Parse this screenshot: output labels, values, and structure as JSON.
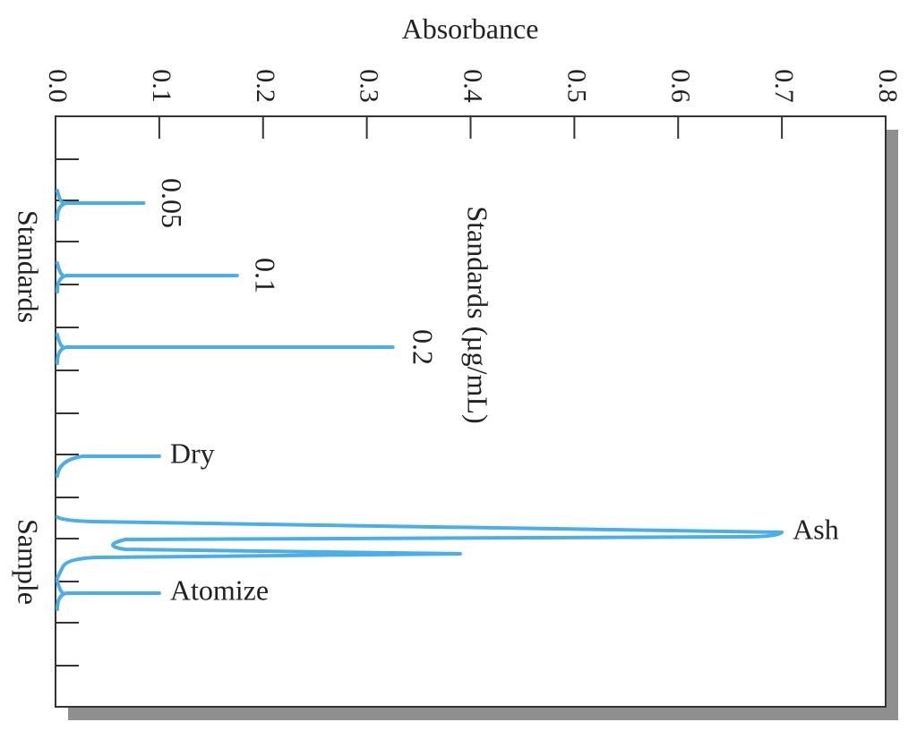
{
  "chart_data": {
    "type": "line",
    "title": "",
    "xlabel": "Absorbance",
    "xlim": [
      0.0,
      0.8
    ],
    "x_ticks": [
      "0.0",
      "0.1",
      "0.2",
      "0.3",
      "0.4",
      "0.5",
      "0.6",
      "0.7",
      "0.8"
    ],
    "legend_label": "Standards (µg/mL)",
    "group_labels": [
      "Standards",
      "Sample"
    ],
    "colors": {
      "trace": "#4aaee8",
      "frame": "#333333",
      "shadow": "#8f8f8f"
    },
    "peaks": [
      {
        "group": "Standards",
        "label": "0.05",
        "absorbance": 0.085
      },
      {
        "group": "Standards",
        "label": "0.1",
        "absorbance": 0.175
      },
      {
        "group": "Standards",
        "label": "0.2",
        "absorbance": 0.325
      },
      {
        "group": "Sample",
        "label": "Dry",
        "absorbance": 0.1
      },
      {
        "group": "Sample",
        "label": "Ash",
        "absorbance": 0.7,
        "secondary_absorbance": 0.39
      },
      {
        "group": "Sample",
        "label": "Atomize",
        "absorbance": 0.1
      }
    ]
  }
}
